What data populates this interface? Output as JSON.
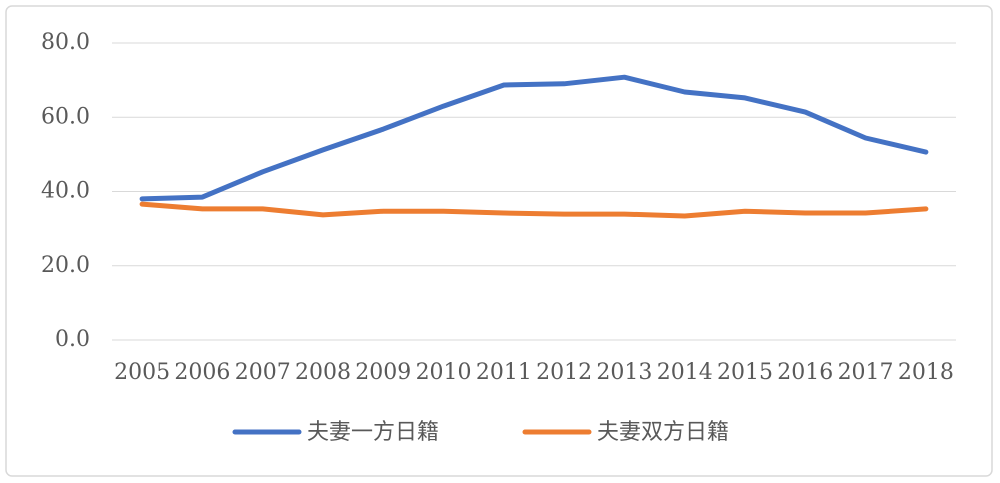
{
  "chart_data": {
    "type": "line",
    "categories": [
      "2005",
      "2006",
      "2007",
      "2008",
      "2009",
      "2010",
      "2011",
      "2012",
      "2013",
      "2014",
      "2015",
      "2016",
      "2017",
      "2018"
    ],
    "series": [
      {
        "name": "夫妻一方日籍",
        "color": "#4472c4",
        "values": [
          38.0,
          38.5,
          45.3,
          51.2,
          56.8,
          63.0,
          68.7,
          69.0,
          70.8,
          66.8,
          65.2,
          61.4,
          54.4,
          50.6
        ]
      },
      {
        "name": "夫妻双方日籍",
        "color": "#ed7d31",
        "values": [
          36.6,
          35.3,
          35.3,
          33.7,
          34.7,
          34.7,
          34.2,
          33.9,
          33.9,
          33.4,
          34.7,
          34.2,
          34.2,
          35.3
        ]
      }
    ],
    "ylim": [
      0,
      80
    ],
    "yticks": [
      {
        "value": 0,
        "label": "0.0"
      },
      {
        "value": 20,
        "label": "20.0"
      },
      {
        "value": 40,
        "label": "40.0"
      },
      {
        "value": 60,
        "label": "60.0"
      },
      {
        "value": 80,
        "label": "80.0"
      }
    ],
    "grid": true,
    "legend": "bottom"
  }
}
